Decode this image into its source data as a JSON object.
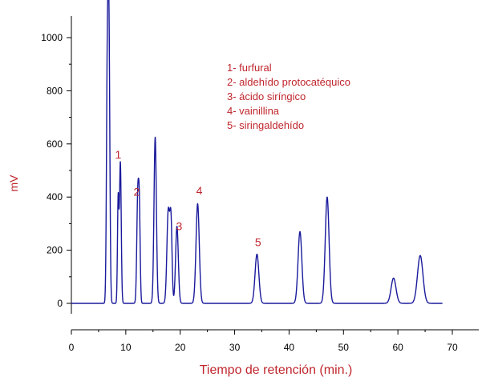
{
  "chart_data": {
    "type": "line",
    "title": "",
    "xlabel": "Tiempo de retención (min.)",
    "ylabel": "mV",
    "xlim": [
      0,
      70
    ],
    "ylim": [
      0,
      1000
    ],
    "x_ticks": [
      0,
      10,
      20,
      30,
      40,
      50,
      60,
      70
    ],
    "y_ticks": [
      0,
      200,
      400,
      600,
      800,
      1000
    ],
    "grid": false,
    "colors": {
      "trace": "#1a1a9c",
      "labels": "#c0262d",
      "axis": "#000000"
    },
    "series": [
      {
        "baseline_end": 68.2,
        "peaks": [
          {
            "t": 6.6,
            "h": 820,
            "w": 0.16
          },
          {
            "t": 6.9,
            "h": 1000,
            "w": 0.17
          },
          {
            "t": 8.6,
            "h": 390,
            "w": 0.13
          },
          {
            "t": 9.0,
            "h": 530,
            "w": 0.16
          },
          {
            "t": 12.2,
            "h": 400,
            "w": 0.18
          },
          {
            "t": 12.5,
            "h": 310,
            "w": 0.15
          },
          {
            "t": 15.4,
            "h": 625,
            "w": 0.22
          },
          {
            "t": 17.8,
            "h": 345,
            "w": 0.25
          },
          {
            "t": 18.3,
            "h": 300,
            "w": 0.2
          },
          {
            "t": 19.4,
            "h": 290,
            "w": 0.25
          },
          {
            "t": 23.2,
            "h": 375,
            "w": 0.3
          },
          {
            "t": 34.1,
            "h": 185,
            "w": 0.35
          },
          {
            "t": 42.0,
            "h": 270,
            "w": 0.35
          },
          {
            "t": 47.0,
            "h": 400,
            "w": 0.35
          },
          {
            "t": 59.2,
            "h": 95,
            "w": 0.45
          },
          {
            "t": 64.1,
            "h": 180,
            "w": 0.5
          }
        ]
      }
    ],
    "peak_labels": [
      {
        "text": "1",
        "x": 8.6,
        "y": 545
      },
      {
        "text": "2",
        "x": 12.0,
        "y": 405
      },
      {
        "text": "3",
        "x": 19.8,
        "y": 275
      },
      {
        "text": "4",
        "x": 23.5,
        "y": 410
      },
      {
        "text": "5",
        "x": 34.3,
        "y": 215
      }
    ],
    "legend": [
      "1- furfural",
      "2- aldehído protocatéquico",
      "3- ácido siríngico",
      "4- vainillina",
      "5- siringaldehído"
    ]
  }
}
